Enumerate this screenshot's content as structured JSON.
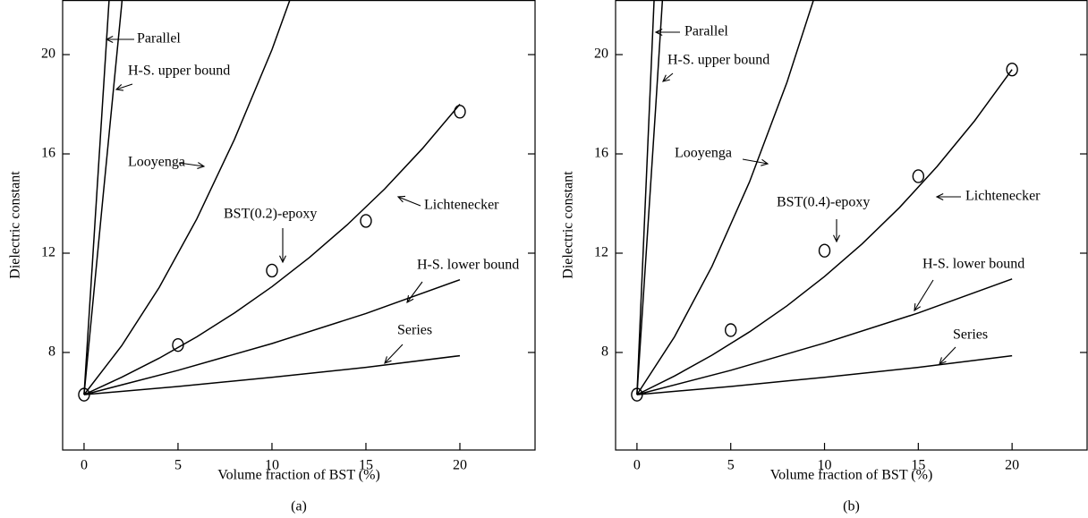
{
  "chart_data": [
    {
      "type": "line",
      "caption": "(a)",
      "xlabel": "Volume fraction of BST (%)",
      "ylabel": "Dielectric constant",
      "xlim": [
        -1.14,
        24
      ],
      "ylim": [
        4.07,
        22.2
      ],
      "xticks": [
        0,
        5,
        10,
        15,
        20
      ],
      "yticks": [
        8,
        12,
        16,
        20
      ],
      "series": [
        {
          "name": "Parallel",
          "color": "#000000",
          "x": [
            0,
            1.5
          ],
          "values": [
            6.3,
            24.2
          ]
        },
        {
          "name": "H-S. upper bound",
          "color": "#000000",
          "x": [
            0,
            1,
            2,
            2.5
          ],
          "values": [
            6.3,
            14.2,
            22.0,
            26.4
          ]
        },
        {
          "name": "Looyenga",
          "color": "#000000",
          "x": [
            0,
            2,
            4,
            6,
            8,
            10,
            12
          ],
          "values": [
            6.3,
            8.27,
            10.62,
            13.38,
            16.58,
            20.2,
            24.4
          ]
        },
        {
          "name": "Lichtenecker",
          "color": "#000000",
          "x": [
            0,
            2,
            4,
            6,
            8,
            10,
            12,
            14,
            16,
            18,
            20
          ],
          "values": [
            6.3,
            7.0,
            7.77,
            8.63,
            9.59,
            10.65,
            11.83,
            13.14,
            14.59,
            16.21,
            18.0
          ]
        },
        {
          "name": "H-S. lower bound",
          "color": "#000000",
          "x": [
            0,
            5,
            10,
            15,
            20
          ],
          "values": [
            6.3,
            7.28,
            8.36,
            9.57,
            10.93
          ]
        },
        {
          "name": "Series",
          "color": "#000000",
          "x": [
            0,
            5,
            10,
            15,
            20
          ],
          "values": [
            6.3,
            6.63,
            7.0,
            7.4,
            7.87
          ]
        },
        {
          "name": "BST(0.2)-epoxy",
          "type": "scatter",
          "marker": "open-circle",
          "color": "#000000",
          "x": [
            0,
            5,
            10,
            15,
            20
          ],
          "values": [
            6.3,
            8.3,
            11.3,
            13.3,
            17.7
          ]
        }
      ]
    },
    {
      "type": "line",
      "caption": "(b)",
      "xlabel": "Volume fraction of BST (%)",
      "ylabel": "Dielectric constant",
      "xlim": [
        -1.14,
        24
      ],
      "ylim": [
        4.07,
        22.2
      ],
      "xticks": [
        0,
        5,
        10,
        15,
        20
      ],
      "yticks": [
        8,
        12,
        16,
        20
      ],
      "series": [
        {
          "name": "Parallel",
          "color": "#000000",
          "x": [
            0,
            1
          ],
          "values": [
            6.3,
            23.7
          ]
        },
        {
          "name": "H-S. upper bound",
          "color": "#000000",
          "x": [
            0,
            1,
            1.5
          ],
          "values": [
            6.3,
            17.9,
            23.9
          ]
        },
        {
          "name": "Looyenga",
          "color": "#000000",
          "x": [
            0,
            2,
            4,
            6,
            8,
            10
          ],
          "values": [
            6.3,
            8.63,
            11.47,
            14.87,
            18.89,
            23.57
          ]
        },
        {
          "name": "Lichtenecker",
          "color": "#000000",
          "x": [
            0,
            2,
            4,
            6,
            8,
            10,
            12,
            14,
            16,
            18,
            20
          ],
          "values": [
            6.3,
            7.05,
            7.89,
            8.83,
            9.88,
            11.06,
            12.37,
            13.84,
            15.49,
            17.33,
            19.4
          ]
        },
        {
          "name": "H-S. lower bound",
          "color": "#000000",
          "x": [
            0,
            5,
            10,
            15,
            20
          ],
          "values": [
            6.3,
            7.28,
            8.38,
            9.59,
            10.96
          ]
        },
        {
          "name": "Series",
          "color": "#000000",
          "x": [
            0,
            5,
            10,
            15,
            20
          ],
          "values": [
            6.3,
            6.63,
            7.0,
            7.4,
            7.87
          ]
        },
        {
          "name": "BST(0.4)-epoxy",
          "type": "scatter",
          "marker": "open-circle",
          "color": "#000000",
          "x": [
            0,
            5,
            10,
            15,
            20
          ],
          "values": [
            6.3,
            8.9,
            12.1,
            15.1,
            19.4
          ]
        }
      ]
    }
  ]
}
